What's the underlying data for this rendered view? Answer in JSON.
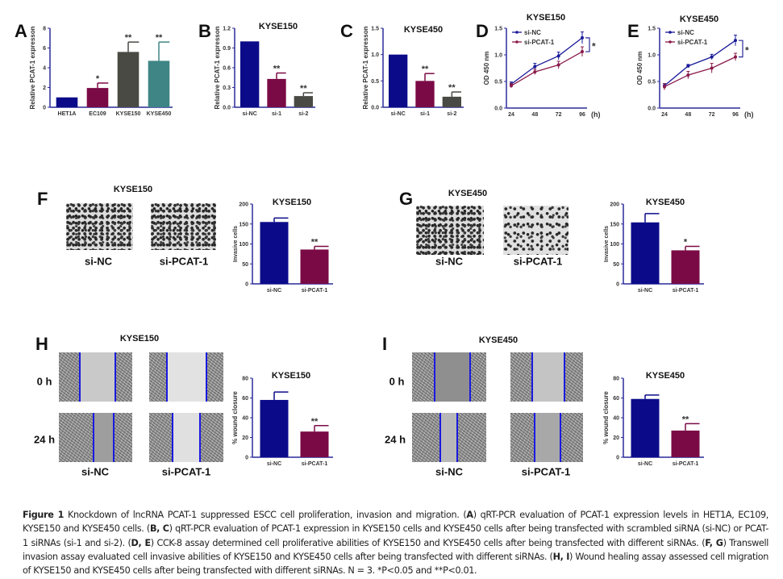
{
  "panels": {
    "A": {
      "label": "A"
    },
    "B": {
      "label": "B"
    },
    "C": {
      "label": "C"
    },
    "D": {
      "label": "D"
    },
    "E": {
      "label": "E"
    },
    "F": {
      "label": "F",
      "title": "KYSE150",
      "images": [
        "si-NC",
        "si-PCAT-1"
      ]
    },
    "G": {
      "label": "G",
      "title": "KYSE450",
      "images": [
        "si-NC",
        "si-PCAT-1"
      ]
    },
    "H": {
      "label": "H",
      "title": "KYSE150",
      "rows": [
        "0 h",
        "24 h"
      ],
      "images": [
        "si-NC",
        "si-PCAT-1"
      ]
    },
    "I": {
      "label": "I",
      "title": "KYSE450",
      "rows": [
        "0 h",
        "24 h"
      ],
      "images": [
        "si-NC",
        "si-PCAT-1"
      ]
    }
  },
  "colors": {
    "navy": "#0b0b8a",
    "maroon": "#7a0a45",
    "darkgray": "#4a4a44",
    "teal": "#3f8585",
    "axis": "#2a2a9a",
    "wound_line": "#1a1ae0"
  },
  "chart_data": [
    {
      "id": "A",
      "type": "bar",
      "title": "",
      "ylabel": "Relative PCAT-1 expresson",
      "categories": [
        "HET1A",
        "EC109",
        "KYSE150",
        "KYSE450"
      ],
      "values": [
        1.0,
        1.95,
        5.6,
        4.7
      ],
      "errors": [
        0,
        0.5,
        1.0,
        1.9
      ],
      "significance": [
        "",
        "*",
        "**",
        "**"
      ],
      "ylim": [
        0,
        8
      ],
      "yticks": [
        "0",
        "2",
        "4",
        "6",
        "8"
      ],
      "bar_colors": [
        "#0b0b8a",
        "#7a0a45",
        "#4a4a44",
        "#3f8585"
      ]
    },
    {
      "id": "B",
      "type": "bar",
      "title": "KYSE150",
      "ylabel": "Relative PCAT-1 expresson",
      "categories": [
        "si-NC",
        "si-1",
        "si-2"
      ],
      "values": [
        1.0,
        0.43,
        0.17
      ],
      "errors": [
        0,
        0.09,
        0.05
      ],
      "significance": [
        "",
        "**",
        "**"
      ],
      "ylim": [
        0,
        1.2
      ],
      "yticks": [
        "0.0",
        "0.3",
        "0.6",
        "0.9",
        "1.2"
      ],
      "bar_colors": [
        "#0b0b8a",
        "#7a0a45",
        "#4a4a44"
      ]
    },
    {
      "id": "C",
      "type": "bar",
      "title": "KYSE450",
      "ylabel": "Relative PCAT-1 expresson",
      "categories": [
        "si-NC",
        "si-1",
        "si-2"
      ],
      "values": [
        1.0,
        0.5,
        0.2
      ],
      "errors": [
        0,
        0.14,
        0.09
      ],
      "significance": [
        "",
        "**",
        "**"
      ],
      "ylim": [
        0,
        1.5
      ],
      "yticks": [
        "0.0",
        "0.5",
        "1.0",
        "1.5"
      ],
      "bar_colors": [
        "#0b0b8a",
        "#7a0a45",
        "#4a4a44"
      ]
    },
    {
      "id": "D",
      "type": "line",
      "title": "KYSE150",
      "ylabel": "OD 450 nm",
      "xunit": "(h)",
      "x": [
        24,
        48,
        72,
        96
      ],
      "xticks": [
        "24",
        "48",
        "72",
        "96"
      ],
      "ylim": [
        0,
        1.5
      ],
      "yticks": [
        "0.0",
        "0.5",
        "1.0",
        "1.5"
      ],
      "significance": "*",
      "legend": "top-left",
      "series": [
        {
          "name": "si-NC",
          "values": [
            0.45,
            0.78,
            0.98,
            1.32
          ],
          "errors": [
            0.04,
            0.06,
            0.07,
            0.11
          ],
          "color": "#1a1a9a"
        },
        {
          "name": "si-PCAT-1",
          "values": [
            0.42,
            0.68,
            0.81,
            1.06
          ],
          "errors": [
            0.04,
            0.05,
            0.07,
            0.09
          ],
          "color": "#8a1a4a"
        }
      ]
    },
    {
      "id": "E",
      "type": "line",
      "title": "KYSE450",
      "ylabel": "OD 450 nm",
      "xunit": "(h)",
      "x": [
        24,
        48,
        72,
        96
      ],
      "xticks": [
        "24",
        "48",
        "72",
        "96"
      ],
      "ylim": [
        0,
        1.5
      ],
      "yticks": [
        "0.0",
        "0.5",
        "1.0",
        "1.5"
      ],
      "significance": "*",
      "legend": "top-left",
      "series": [
        {
          "name": "si-NC",
          "values": [
            0.42,
            0.79,
            0.96,
            1.27
          ],
          "errors": [
            0.04,
            0.03,
            0.05,
            0.1
          ],
          "color": "#1a1a9a"
        },
        {
          "name": "si-PCAT-1",
          "values": [
            0.4,
            0.62,
            0.75,
            0.96
          ],
          "errors": [
            0.06,
            0.07,
            0.09,
            0.07
          ],
          "color": "#8a1a4a"
        }
      ]
    },
    {
      "id": "F",
      "type": "bar",
      "title": "KYSE150",
      "ylabel": "Invasive cells",
      "categories": [
        "si-NC",
        "si-PCAT-1"
      ],
      "values": [
        155,
        86
      ],
      "errors": [
        10,
        8
      ],
      "significance": [
        "",
        "**"
      ],
      "ylim": [
        0,
        200
      ],
      "yticks": [
        "0",
        "50",
        "100",
        "150",
        "200"
      ],
      "bar_colors": [
        "#0b0b8a",
        "#7a0a45"
      ]
    },
    {
      "id": "G",
      "type": "bar",
      "title": "KYSE450",
      "ylabel": "Invasive cells",
      "categories": [
        "si-NC",
        "si-PCAT-1"
      ],
      "values": [
        154,
        84
      ],
      "errors": [
        22,
        10
      ],
      "significance": [
        "",
        "*"
      ],
      "ylim": [
        0,
        200
      ],
      "yticks": [
        "0",
        "50",
        "100",
        "150",
        "200"
      ],
      "bar_colors": [
        "#0b0b8a",
        "#7a0a45"
      ]
    },
    {
      "id": "H",
      "type": "bar",
      "title": "KYSE150",
      "ylabel": "% wound closure",
      "categories": [
        "si-NC",
        "si-PCAT-1"
      ],
      "values": [
        58,
        26
      ],
      "errors": [
        8,
        6
      ],
      "significance": [
        "",
        "**"
      ],
      "ylim": [
        0,
        80
      ],
      "yticks": [
        "0",
        "20",
        "40",
        "60",
        "80"
      ],
      "bar_colors": [
        "#0b0b8a",
        "#7a0a45"
      ]
    },
    {
      "id": "I",
      "type": "bar",
      "title": "KYSE450",
      "ylabel": "% wound closure",
      "categories": [
        "si-NC",
        "si-PCAT-1"
      ],
      "values": [
        59,
        27
      ],
      "errors": [
        4,
        7
      ],
      "significance": [
        "",
        "**"
      ],
      "ylim": [
        0,
        80
      ],
      "yticks": [
        "0",
        "20",
        "40",
        "60",
        "80"
      ],
      "bar_colors": [
        "#0b0b8a",
        "#7a0a45"
      ]
    }
  ],
  "caption": [
    {
      "bold": true,
      "text": "Figure 1"
    },
    {
      "bold": false,
      "text": " Knockdown of lncRNA PCAT-1 suppressed ESCC cell proliferation, invasion and migration. ("
    },
    {
      "bold": true,
      "text": "A"
    },
    {
      "bold": false,
      "text": ") qRT-PCR evaluation of PCAT-1 expression levels in HET1A, EC109, KYSE150 and KYSE450 cells. ("
    },
    {
      "bold": true,
      "text": "B, C"
    },
    {
      "bold": false,
      "text": ") qRT-PCR evaluation of PCAT-1 expression in KYSE150 cells and KYSE450 cells after being transfected with scrambled siRNA (si-NC) or PCAT-1 siRNAs (si-1 and si-2). ("
    },
    {
      "bold": true,
      "text": "D, E"
    },
    {
      "bold": false,
      "text": ") CCK-8 assay determined cell proliferative abilities of KYSE150 and KYSE450 cells after being transfected with different siRNAs. ("
    },
    {
      "bold": true,
      "text": "F, G"
    },
    {
      "bold": false,
      "text": ") Transwell invasion assay evaluated cell invasive abilities of KYSE150 and KYSE450 cells after being transfected with different siRNAs. ("
    },
    {
      "bold": true,
      "text": "H, I"
    },
    {
      "bold": false,
      "text": ") Wound healing assay assessed cell migration of KYSE150 and KYSE450 cells after being transfected with different siRNAs. N = 3. *P<0.05 and **P<0.01."
    }
  ]
}
